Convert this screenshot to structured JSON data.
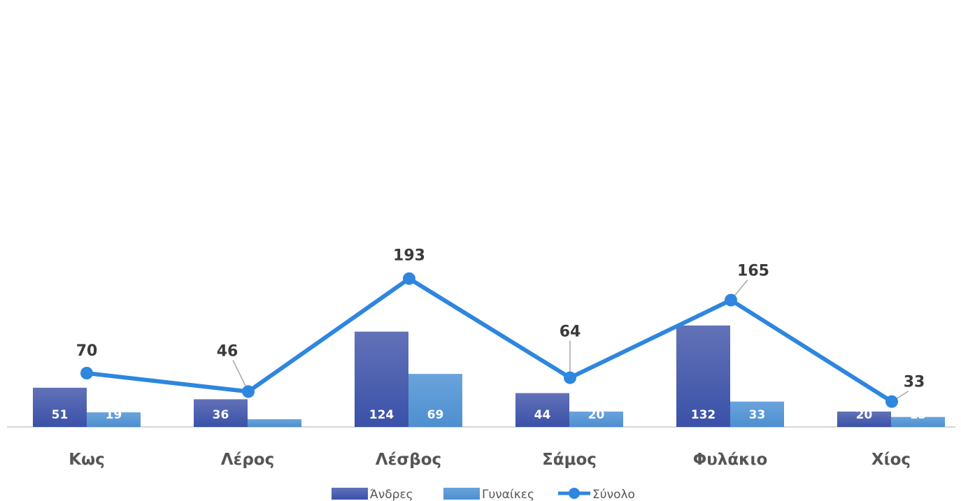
{
  "chart_data": {
    "type": "bar",
    "categories": [
      "Κως",
      "Λέρος",
      "Λέσβος",
      "Σάμος",
      "Φυλάκιο",
      "Χίος"
    ],
    "series": [
      {
        "name": "Άνδρες",
        "type": "bar",
        "color": "#4A5FB5",
        "values": [
          51,
          36,
          124,
          44,
          132,
          20
        ]
      },
      {
        "name": "Γυναίκες",
        "type": "bar",
        "color": "#5B9BD5",
        "values": [
          19,
          10,
          69,
          20,
          33,
          13
        ]
      },
      {
        "name": "Σύνολο",
        "type": "line",
        "color": "#2E86DE",
        "values": [
          70,
          46,
          193,
          64,
          165,
          33
        ]
      }
    ],
    "ylim": [
      0,
      200
    ],
    "grid": false,
    "legend": "bottom",
    "title": "",
    "xlabel": "",
    "ylabel": ""
  }
}
